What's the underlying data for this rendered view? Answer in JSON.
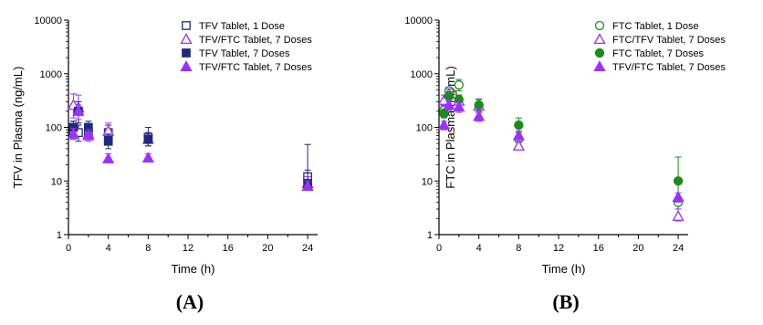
{
  "chart_data": [
    {
      "type": "scatter",
      "panel_label": "(A)",
      "xlabel": "Time (h)",
      "ylabel": "TFV in Plasma (ng/mL)",
      "xlim": [
        0,
        25
      ],
      "ylim": [
        1,
        10000
      ],
      "y_scale": "log",
      "x_ticks": [
        0,
        4,
        8,
        12,
        16,
        20,
        24
      ],
      "y_ticks": [
        1,
        10,
        100,
        1000,
        10000
      ],
      "grid": false,
      "legend_position": "top-right",
      "error_bars": "vertical",
      "series": [
        {
          "name": "TFV Tablet, 1 Dose",
          "color": "#1f2a7a",
          "marker": "square-open",
          "x": [
            0.5,
            1,
            2,
            4,
            8,
            24
          ],
          "y": [
            85,
            80,
            80,
            80,
            65,
            12
          ],
          "err_low": [
            60,
            55,
            60,
            55,
            45,
            7
          ],
          "err_high": [
            130,
            110,
            110,
            110,
            100,
            48
          ]
        },
        {
          "name": "TFV/FTC Tablet, 7 Doses",
          "color": "#9b30ff",
          "marker": "triangle-open",
          "x": [
            0.5,
            1,
            2,
            4,
            8,
            24
          ],
          "y": [
            260,
            230,
            75,
            85,
            60,
            9
          ],
          "err_low": [
            150,
            120,
            60,
            60,
            50,
            7
          ],
          "err_high": [
            420,
            400,
            95,
            120,
            75,
            12
          ]
        },
        {
          "name": "TFV Tablet, 7 Doses",
          "color": "#1f2a7a",
          "marker": "square-filled",
          "x": [
            0.5,
            1,
            2,
            4,
            8,
            24
          ],
          "y": [
            100,
            200,
            100,
            55,
            60,
            9
          ],
          "err_low": [
            75,
            120,
            70,
            40,
            45,
            7
          ],
          "err_high": [
            130,
            300,
            130,
            75,
            80,
            16
          ]
        },
        {
          "name": "TFV/FTC Tablet, 7 Doses",
          "color": "#9b30ff",
          "marker": "triangle-filled",
          "x": [
            0.5,
            1,
            2,
            4,
            8,
            24
          ],
          "y": [
            75,
            200,
            70,
            26,
            27,
            8
          ],
          "err_low": [
            60,
            140,
            55,
            22,
            23,
            7
          ],
          "err_high": [
            95,
            260,
            90,
            32,
            32,
            10
          ]
        }
      ]
    },
    {
      "type": "scatter",
      "panel_label": "(B)",
      "xlabel": "Time (h)",
      "ylabel": "FTC in Plasma (ng/mL)",
      "xlim": [
        0,
        25
      ],
      "ylim": [
        1,
        10000
      ],
      "y_scale": "log",
      "x_ticks": [
        0,
        4,
        8,
        12,
        16,
        20,
        24
      ],
      "y_ticks": [
        1,
        10,
        100,
        1000,
        10000
      ],
      "grid": false,
      "legend_position": "top-right",
      "error_bars": "vertical",
      "series": [
        {
          "name": "FTC Tablet, 1 Dose",
          "color": "#1a8c1a",
          "marker": "circle-open",
          "x": [
            0.5,
            1,
            2,
            4,
            8,
            24
          ],
          "y": [
            210,
            480,
            620,
            260,
            60,
            4
          ],
          "err_low": [
            160,
            380,
            480,
            190,
            45,
            3
          ],
          "err_high": [
            260,
            560,
            780,
            330,
            80,
            5
          ]
        },
        {
          "name": "FTC/TFV Tablet, 7 Doses",
          "color": "#9b30ff",
          "marker": "triangle-open",
          "x": [
            0.5,
            1,
            2,
            4,
            8,
            24
          ],
          "y": [
            320,
            420,
            310,
            250,
            45,
            2.2
          ],
          "err_low": [
            250,
            330,
            240,
            190,
            38,
            1.8
          ],
          "err_high": [
            400,
            520,
            400,
            340,
            55,
            3
          ]
        },
        {
          "name": "FTC Tablet, 7 Doses",
          "color": "#1a8c1a",
          "marker": "circle-filled",
          "x": [
            0.5,
            1,
            2,
            4,
            8,
            24
          ],
          "y": [
            180,
            380,
            330,
            260,
            110,
            10
          ],
          "err_low": [
            150,
            300,
            260,
            200,
            85,
            5
          ],
          "err_high": [
            220,
            460,
            400,
            330,
            150,
            28
          ]
        },
        {
          "name": "TFV/FTC Tablet, 7 Doses",
          "color": "#9b30ff",
          "marker": "triangle-filled",
          "x": [
            0.5,
            1,
            2,
            4,
            8,
            24
          ],
          "y": [
            110,
            260,
            240,
            160,
            70,
            5
          ],
          "err_low": [
            90,
            210,
            190,
            130,
            55,
            4
          ],
          "err_high": [
            130,
            320,
            290,
            200,
            85,
            6
          ]
        }
      ]
    }
  ]
}
